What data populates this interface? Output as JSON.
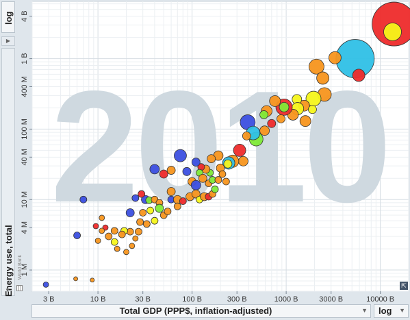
{
  "ui": {
    "y_scale_label": "log",
    "x_scale_label": "log",
    "x_axis_label": "Total GDP (PPP$, inflation-adjusted)",
    "y_axis_label": "Energy use, total",
    "source_label": "World Bank",
    "dropdown_icon": "triangle-down-icon",
    "collapse_icon": "triangle-right-icon",
    "resize_icon": "resize-icon"
  },
  "chart_data": {
    "type": "scatter",
    "year_watermark": "2010",
    "x_scale": "log",
    "y_scale": "log",
    "x_range": [
      2,
      20000
    ],
    "y_range": [
      0.5,
      6500
    ],
    "grid": true,
    "x_ticks": [
      {
        "value": 3,
        "label": "3 B"
      },
      {
        "value": 10,
        "label": "10 B"
      },
      {
        "value": 30,
        "label": "30 B"
      },
      {
        "value": 100,
        "label": "100 B"
      },
      {
        "value": 300,
        "label": "300 B"
      },
      {
        "value": 1000,
        "label": "1000 B"
      },
      {
        "value": 3000,
        "label": "3000 B"
      },
      {
        "value": 10000,
        "label": "10000 B"
      }
    ],
    "y_ticks": [
      {
        "value": 1,
        "label": "1 M"
      },
      {
        "value": 4,
        "label": "4 M"
      },
      {
        "value": 10,
        "label": "10 M"
      },
      {
        "value": 40,
        "label": "40 M"
      },
      {
        "value": 100,
        "label": "100 M"
      },
      {
        "value": 400,
        "label": "400 M"
      },
      {
        "value": 1000,
        "label": "1 B"
      },
      {
        "value": 4000,
        "label": "4 B"
      }
    ],
    "colors": {
      "blue": "#3b4fe0",
      "cyan": "#2fc0e6",
      "red": "#ee2b2b",
      "orange": "#f7951e",
      "yellow": "#f5f51a",
      "green": "#7fea38"
    },
    "points": [
      {
        "x": 14000,
        "y": 3100,
        "c": "red",
        "s": 32
      },
      {
        "x": 13500,
        "y": 2400,
        "c": "yellow",
        "s": 13
      },
      {
        "x": 5400,
        "y": 1000,
        "c": "cyan",
        "s": 28
      },
      {
        "x": 5900,
        "y": 580,
        "c": "red",
        "s": 9
      },
      {
        "x": 3300,
        "y": 1030,
        "c": "orange",
        "s": 9
      },
      {
        "x": 2100,
        "y": 770,
        "c": "orange",
        "s": 11
      },
      {
        "x": 2450,
        "y": 530,
        "c": "orange",
        "s": 9
      },
      {
        "x": 2550,
        "y": 310,
        "c": "orange",
        "s": 10
      },
      {
        "x": 1950,
        "y": 270,
        "c": "yellow",
        "s": 11
      },
      {
        "x": 1550,
        "y": 215,
        "c": "orange",
        "s": 8
      },
      {
        "x": 1300,
        "y": 265,
        "c": "yellow",
        "s": 7
      },
      {
        "x": 1320,
        "y": 195,
        "c": "yellow",
        "s": 9
      },
      {
        "x": 1180,
        "y": 160,
        "c": "orange",
        "s": 8
      },
      {
        "x": 1900,
        "y": 190,
        "c": "yellow",
        "s": 6
      },
      {
        "x": 1600,
        "y": 130,
        "c": "orange",
        "s": 8
      },
      {
        "x": 950,
        "y": 205,
        "c": "red",
        "s": 12
      },
      {
        "x": 950,
        "y": 205,
        "c": "green",
        "s": 7
      },
      {
        "x": 760,
        "y": 250,
        "c": "orange",
        "s": 8
      },
      {
        "x": 620,
        "y": 180,
        "c": "orange",
        "s": 8
      },
      {
        "x": 880,
        "y": 140,
        "c": "orange",
        "s": 6
      },
      {
        "x": 700,
        "y": 120,
        "c": "red",
        "s": 6
      },
      {
        "x": 580,
        "y": 160,
        "c": "green",
        "s": 6
      },
      {
        "x": 390,
        "y": 125,
        "c": "blue",
        "s": 11
      },
      {
        "x": 480,
        "y": 72,
        "c": "green",
        "s": 10
      },
      {
        "x": 590,
        "y": 95,
        "c": "orange",
        "s": 7
      },
      {
        "x": 445,
        "y": 88,
        "c": "cyan",
        "s": 10
      },
      {
        "x": 380,
        "y": 80,
        "c": "orange",
        "s": 6
      },
      {
        "x": 320,
        "y": 50,
        "c": "red",
        "s": 9
      },
      {
        "x": 350,
        "y": 35,
        "c": "orange",
        "s": 7
      },
      {
        "x": 270,
        "y": 35,
        "c": "orange",
        "s": 9
      },
      {
        "x": 245,
        "y": 33,
        "c": "cyan",
        "s": 9
      },
      {
        "x": 240,
        "y": 32,
        "c": "yellow",
        "s": 6
      },
      {
        "x": 190,
        "y": 42,
        "c": "orange",
        "s": 7
      },
      {
        "x": 160,
        "y": 38,
        "c": "orange",
        "s": 6
      },
      {
        "x": 200,
        "y": 28,
        "c": "orange",
        "s": 6
      },
      {
        "x": 155,
        "y": 24,
        "c": "green",
        "s": 5
      },
      {
        "x": 140,
        "y": 27,
        "c": "orange",
        "s": 6
      },
      {
        "x": 125,
        "y": 29,
        "c": "red",
        "s": 5
      },
      {
        "x": 110,
        "y": 34,
        "c": "blue",
        "s": 6
      },
      {
        "x": 120,
        "y": 24,
        "c": "green",
        "s": 5
      },
      {
        "x": 75,
        "y": 42,
        "c": "blue",
        "s": 9
      },
      {
        "x": 40,
        "y": 27,
        "c": "blue",
        "s": 7
      },
      {
        "x": 88,
        "y": 25,
        "c": "blue",
        "s": 6
      },
      {
        "x": 60,
        "y": 26,
        "c": "orange",
        "s": 6
      },
      {
        "x": 50,
        "y": 23,
        "c": "red",
        "s": 6
      },
      {
        "x": 100,
        "y": 18,
        "c": "orange",
        "s": 6
      },
      {
        "x": 110,
        "y": 16,
        "c": "blue",
        "s": 7
      },
      {
        "x": 130,
        "y": 20,
        "c": "orange",
        "s": 6
      },
      {
        "x": 150,
        "y": 17,
        "c": "orange",
        "s": 5
      },
      {
        "x": 165,
        "y": 19,
        "c": "green",
        "s": 5
      },
      {
        "x": 190,
        "y": 19,
        "c": "orange",
        "s": 5
      },
      {
        "x": 210,
        "y": 23,
        "c": "orange",
        "s": 5
      },
      {
        "x": 230,
        "y": 18,
        "c": "orange",
        "s": 5
      },
      {
        "x": 60,
        "y": 13,
        "c": "orange",
        "s": 6
      },
      {
        "x": 60,
        "y": 10,
        "c": "blue",
        "s": 5
      },
      {
        "x": 95,
        "y": 11,
        "c": "orange",
        "s": 6
      },
      {
        "x": 110,
        "y": 12,
        "c": "orange",
        "s": 6
      },
      {
        "x": 120,
        "y": 10,
        "c": "yellow",
        "s": 5
      },
      {
        "x": 135,
        "y": 11,
        "c": "orange",
        "s": 6
      },
      {
        "x": 150,
        "y": 11,
        "c": "red",
        "s": 5
      },
      {
        "x": 165,
        "y": 12,
        "c": "orange",
        "s": 5
      },
      {
        "x": 175,
        "y": 14,
        "c": "green",
        "s": 5
      },
      {
        "x": 70,
        "y": 10,
        "c": "orange",
        "s": 6
      },
      {
        "x": 80,
        "y": 9.5,
        "c": "red",
        "s": 5
      },
      {
        "x": 32,
        "y": 10,
        "c": "blue",
        "s": 6
      },
      {
        "x": 35,
        "y": 9.8,
        "c": "green",
        "s": 5
      },
      {
        "x": 40,
        "y": 10,
        "c": "orange",
        "s": 5
      },
      {
        "x": 45,
        "y": 9,
        "c": "orange",
        "s": 5
      },
      {
        "x": 25,
        "y": 10.5,
        "c": "blue",
        "s": 5
      },
      {
        "x": 29,
        "y": 12,
        "c": "red",
        "s": 5
      },
      {
        "x": 30,
        "y": 6.5,
        "c": "orange",
        "s": 5
      },
      {
        "x": 36,
        "y": 7,
        "c": "yellow",
        "s": 5
      },
      {
        "x": 45,
        "y": 7.5,
        "c": "green",
        "s": 6
      },
      {
        "x": 50,
        "y": 6,
        "c": "orange",
        "s": 5
      },
      {
        "x": 55,
        "y": 6.8,
        "c": "orange",
        "s": 5
      },
      {
        "x": 70,
        "y": 8,
        "c": "orange",
        "s": 5
      },
      {
        "x": 40,
        "y": 5,
        "c": "yellow",
        "s": 5
      },
      {
        "x": 33,
        "y": 4.5,
        "c": "orange",
        "s": 5
      },
      {
        "x": 28,
        "y": 4.8,
        "c": "orange",
        "s": 5
      },
      {
        "x": 22,
        "y": 6.5,
        "c": "blue",
        "s": 6
      },
      {
        "x": 27,
        "y": 3.5,
        "c": "orange",
        "s": 5
      },
      {
        "x": 22,
        "y": 3.5,
        "c": "orange",
        "s": 5
      },
      {
        "x": 19,
        "y": 3.6,
        "c": "yellow",
        "s": 5
      },
      {
        "x": 18,
        "y": 3.2,
        "c": "orange",
        "s": 5
      },
      {
        "x": 15,
        "y": 3.6,
        "c": "orange",
        "s": 5
      },
      {
        "x": 15,
        "y": 2.5,
        "c": "yellow",
        "s": 5
      },
      {
        "x": 13,
        "y": 3.0,
        "c": "orange",
        "s": 5
      },
      {
        "x": 12,
        "y": 4.0,
        "c": "red",
        "s": 4
      },
      {
        "x": 11,
        "y": 3.6,
        "c": "orange",
        "s": 4
      },
      {
        "x": 10,
        "y": 2.6,
        "c": "orange",
        "s": 4
      },
      {
        "x": 16,
        "y": 2.0,
        "c": "orange",
        "s": 4
      },
      {
        "x": 20,
        "y": 1.8,
        "c": "orange",
        "s": 4
      },
      {
        "x": 23,
        "y": 2.2,
        "c": "orange",
        "s": 4
      },
      {
        "x": 25,
        "y": 2.8,
        "c": "orange",
        "s": 4
      },
      {
        "x": 11,
        "y": 5.5,
        "c": "orange",
        "s": 4
      },
      {
        "x": 9.5,
        "y": 4.2,
        "c": "red",
        "s": 4
      },
      {
        "x": 6.0,
        "y": 3.1,
        "c": "blue",
        "s": 5
      },
      {
        "x": 7.0,
        "y": 10,
        "c": "blue",
        "s": 5
      },
      {
        "x": 2.8,
        "y": 0.62,
        "c": "blue",
        "s": 4
      },
      {
        "x": 5.8,
        "y": 0.75,
        "c": "orange",
        "s": 3
      },
      {
        "x": 8.7,
        "y": 0.72,
        "c": "orange",
        "s": 3
      }
    ]
  }
}
